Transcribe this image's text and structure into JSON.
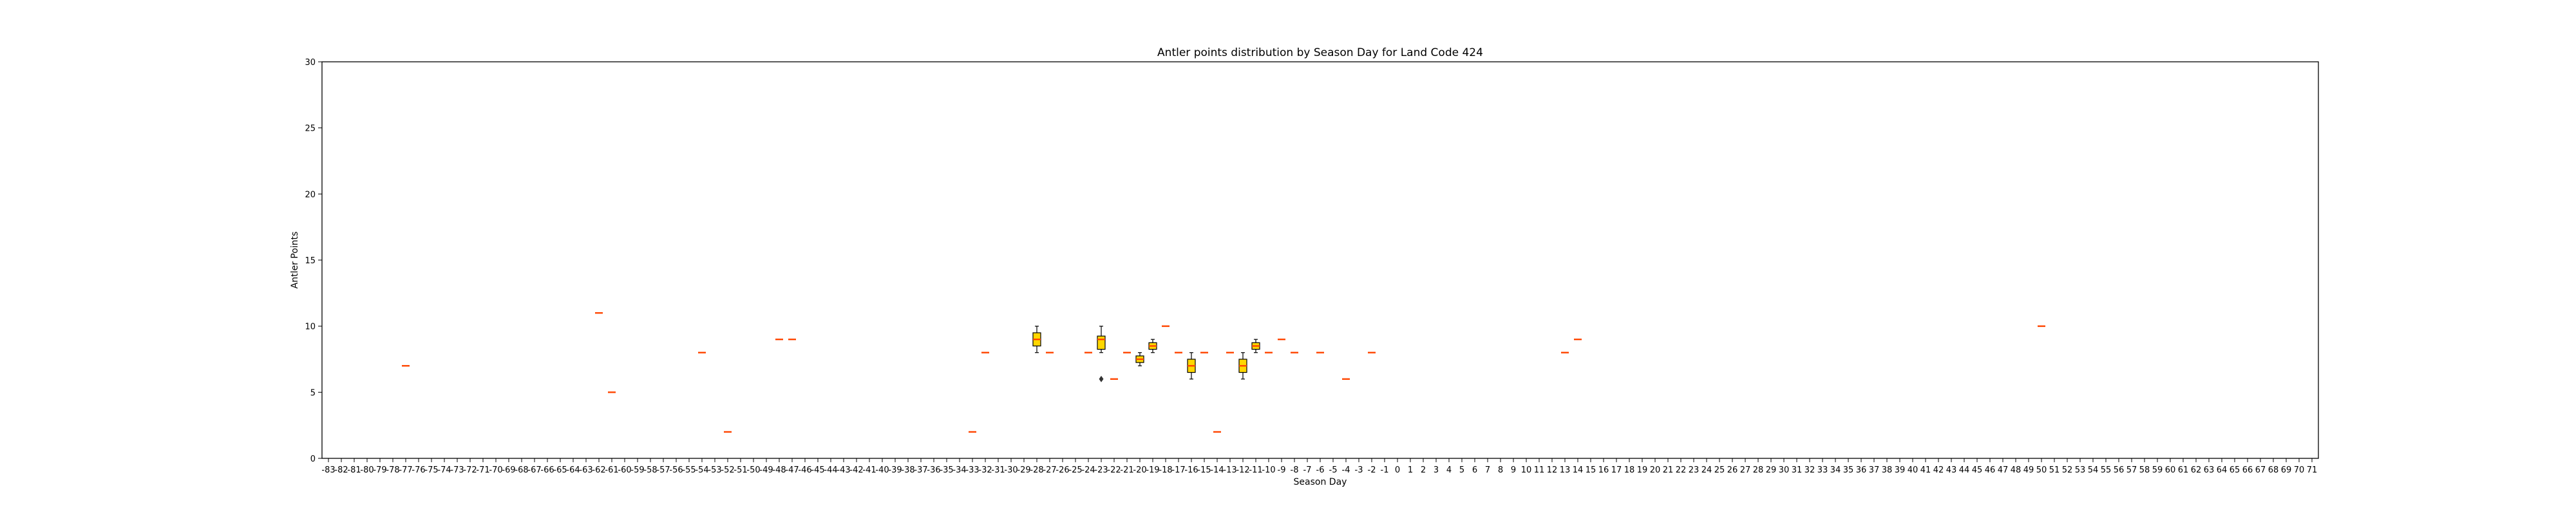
{
  "chart_data": {
    "type": "box",
    "title": "Antler points distribution by Season Day for Land Code 424",
    "xlabel": "Season Day",
    "ylabel": "Antler Points",
    "ylim": [
      0,
      30
    ],
    "yticks": [
      0,
      5,
      10,
      15,
      20,
      25,
      30
    ],
    "grid": false,
    "box_color": "#FFD700",
    "median_color": "#FF4500",
    "x_start": -83,
    "x_end": 71,
    "boxes": [
      {
        "day": -77,
        "q1": 7,
        "median": 7,
        "q3": 7,
        "min": 7,
        "max": 7
      },
      {
        "day": -62,
        "q1": 11,
        "median": 11,
        "q3": 11,
        "min": 11,
        "max": 11
      },
      {
        "day": -61,
        "q1": 5,
        "median": 5,
        "q3": 5,
        "min": 5,
        "max": 5
      },
      {
        "day": -54,
        "q1": 8,
        "median": 8,
        "q3": 8,
        "min": 8,
        "max": 8
      },
      {
        "day": -52,
        "q1": 2,
        "median": 2,
        "q3": 2,
        "min": 2,
        "max": 2
      },
      {
        "day": -48,
        "q1": 9,
        "median": 9,
        "q3": 9,
        "min": 9,
        "max": 9
      },
      {
        "day": -47,
        "q1": 9,
        "median": 9,
        "q3": 9,
        "min": 9,
        "max": 9
      },
      {
        "day": -33,
        "q1": 2,
        "median": 2,
        "q3": 2,
        "min": 2,
        "max": 2
      },
      {
        "day": -32,
        "q1": 8,
        "median": 8,
        "q3": 8,
        "min": 8,
        "max": 8
      },
      {
        "day": -28,
        "q1": 8.5,
        "median": 9,
        "q3": 9.5,
        "min": 8,
        "max": 10
      },
      {
        "day": -27,
        "q1": 8,
        "median": 8,
        "q3": 8,
        "min": 8,
        "max": 8
      },
      {
        "day": -24,
        "q1": 8,
        "median": 8,
        "q3": 8,
        "min": 8,
        "max": 8
      },
      {
        "day": -23,
        "q1": 8.25,
        "median": 9,
        "q3": 9.25,
        "min": 8,
        "max": 10,
        "outliers": [
          6
        ]
      },
      {
        "day": -22,
        "q1": 6,
        "median": 6,
        "q3": 6,
        "min": 6,
        "max": 6
      },
      {
        "day": -21,
        "q1": 8,
        "median": 8,
        "q3": 8,
        "min": 8,
        "max": 8
      },
      {
        "day": -20,
        "q1": 7.25,
        "median": 7.5,
        "q3": 7.75,
        "min": 7,
        "max": 8
      },
      {
        "day": -19,
        "q1": 8.25,
        "median": 8.5,
        "q3": 8.75,
        "min": 8,
        "max": 9
      },
      {
        "day": -18,
        "q1": 10,
        "median": 10,
        "q3": 10,
        "min": 10,
        "max": 10
      },
      {
        "day": -17,
        "q1": 8,
        "median": 8,
        "q3": 8,
        "min": 8,
        "max": 8
      },
      {
        "day": -16,
        "q1": 6.5,
        "median": 7,
        "q3": 7.5,
        "min": 6,
        "max": 8
      },
      {
        "day": -15,
        "q1": 8,
        "median": 8,
        "q3": 8,
        "min": 8,
        "max": 8
      },
      {
        "day": -14,
        "q1": 2,
        "median": 2,
        "q3": 2,
        "min": 2,
        "max": 2
      },
      {
        "day": -13,
        "q1": 8,
        "median": 8,
        "q3": 8,
        "min": 8,
        "max": 8
      },
      {
        "day": -12,
        "q1": 6.5,
        "median": 7,
        "q3": 7.5,
        "min": 6,
        "max": 8
      },
      {
        "day": -11,
        "q1": 8.25,
        "median": 8.5,
        "q3": 8.75,
        "min": 8,
        "max": 9
      },
      {
        "day": -10,
        "q1": 8,
        "median": 8,
        "q3": 8,
        "min": 8,
        "max": 8
      },
      {
        "day": -9,
        "q1": 9,
        "median": 9,
        "q3": 9,
        "min": 9,
        "max": 9
      },
      {
        "day": -8,
        "q1": 8,
        "median": 8,
        "q3": 8,
        "min": 8,
        "max": 8
      },
      {
        "day": -6,
        "q1": 8,
        "median": 8,
        "q3": 8,
        "min": 8,
        "max": 8
      },
      {
        "day": -4,
        "q1": 6,
        "median": 6,
        "q3": 6,
        "min": 6,
        "max": 6
      },
      {
        "day": -2,
        "q1": 8,
        "median": 8,
        "q3": 8,
        "min": 8,
        "max": 8
      },
      {
        "day": 13,
        "q1": 8,
        "median": 8,
        "q3": 8,
        "min": 8,
        "max": 8
      },
      {
        "day": 14,
        "q1": 9,
        "median": 9,
        "q3": 9,
        "min": 9,
        "max": 9
      },
      {
        "day": 50,
        "q1": 10,
        "median": 10,
        "q3": 10,
        "min": 10,
        "max": 10
      }
    ]
  }
}
